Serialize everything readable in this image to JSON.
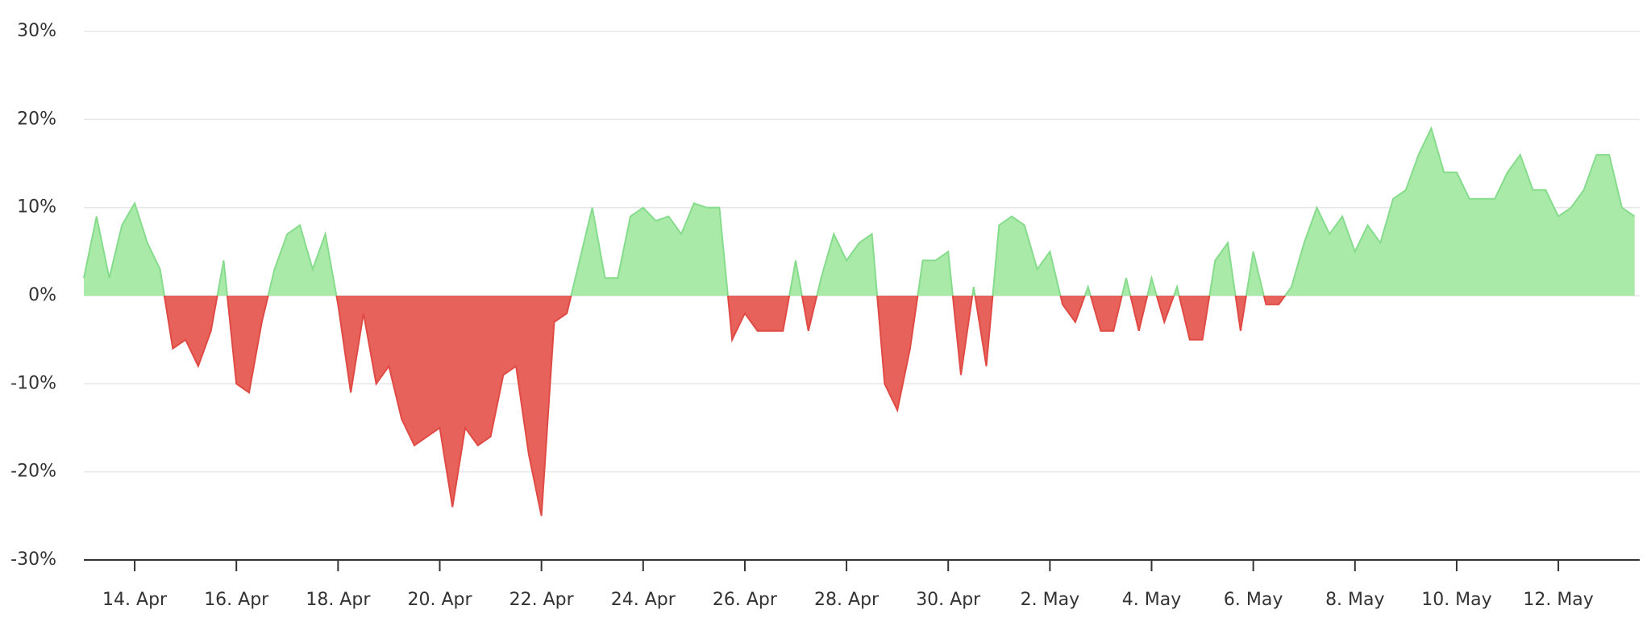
{
  "chart_data": {
    "type": "area",
    "categories": [
      null,
      null,
      null,
      null,
      "14. Apr",
      null,
      null,
      null,
      null,
      null,
      null,
      null,
      "16. Apr",
      null,
      null,
      null,
      null,
      null,
      null,
      null,
      "18. Apr",
      null,
      null,
      null,
      null,
      null,
      null,
      null,
      "20. Apr",
      null,
      null,
      null,
      null,
      null,
      null,
      null,
      "22. Apr",
      null,
      null,
      null,
      null,
      null,
      null,
      null,
      "24. Apr",
      null,
      null,
      null,
      null,
      null,
      null,
      null,
      "26. Apr",
      null,
      null,
      null,
      null,
      null,
      null,
      null,
      "28. Apr",
      null,
      null,
      null,
      null,
      null,
      null,
      null,
      "30. Apr",
      null,
      null,
      null,
      null,
      null,
      null,
      null,
      "2. May",
      null,
      null,
      null,
      null,
      null,
      null,
      null,
      "4. May",
      null,
      null,
      null,
      null,
      null,
      null,
      null,
      "6. May",
      null,
      null,
      null,
      null,
      null,
      null,
      null,
      "8. May",
      null,
      null,
      null,
      null,
      null,
      null,
      null,
      "10. May",
      null,
      null,
      null,
      null,
      null,
      null,
      null,
      "12. May",
      null,
      null,
      null,
      null,
      null,
      null
    ],
    "values": [
      2,
      9,
      2,
      8,
      10.5,
      6,
      3,
      -6,
      -5,
      -8,
      -4,
      4,
      -10,
      -11,
      -3,
      3,
      7,
      8,
      3,
      7,
      -1,
      -11,
      -2,
      -10,
      -8,
      -14,
      -17,
      -16,
      -15,
      -24,
      -15,
      -17,
      -16,
      -9,
      -8,
      -18,
      -25,
      -3,
      -2,
      4,
      10,
      2,
      2,
      9,
      10,
      8.5,
      9,
      7,
      10.5,
      10,
      10,
      -5,
      -2,
      -4,
      -4,
      -4,
      4,
      -4,
      2,
      7,
      4,
      6,
      7,
      -10,
      -13,
      -6,
      4,
      4,
      5,
      -9,
      1,
      -8,
      8,
      9,
      8,
      3,
      5,
      -1,
      -3,
      1,
      -4,
      -4,
      2,
      -4,
      2,
      -3,
      1,
      -5,
      -5,
      4,
      6,
      -4,
      5,
      -1,
      -1,
      1,
      6,
      10,
      7,
      9,
      5,
      8,
      6,
      11,
      12,
      16,
      19,
      14,
      14,
      11,
      11,
      11,
      14,
      16,
      12,
      12,
      9,
      10,
      12,
      16,
      16,
      10,
      9
    ],
    "color": "#a9eaa9",
    "line_color": "#86dc8c",
    "negative_color": "#e8625c",
    "ylim": [
      -30,
      30
    ],
    "yticks": [
      {
        "value": -30,
        "label": "-30%"
      },
      {
        "value": -20,
        "label": "-20%"
      },
      {
        "value": -10,
        "label": "-10%"
      },
      {
        "value": 0,
        "label": "0%"
      },
      {
        "value": 10,
        "label": "10%"
      },
      {
        "value": 20,
        "label": "20%"
      },
      {
        "value": 30,
        "label": "30%"
      }
    ],
    "grid": true
  }
}
